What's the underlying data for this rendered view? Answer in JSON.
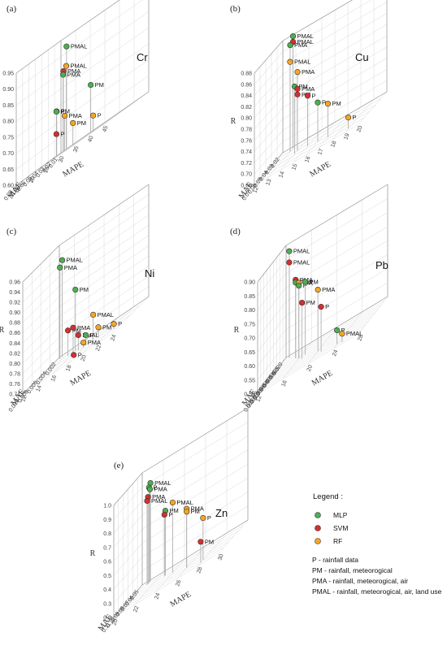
{
  "legend": {
    "title": "Legend :",
    "models": [
      {
        "name": "MLP",
        "color": "#4caf50"
      },
      {
        "name": "SVM",
        "color": "#d62f2f"
      },
      {
        "name": "RF",
        "color": "#f5a623"
      }
    ],
    "abbreviations": [
      "P - rainfall data",
      "PM - rainfall, meteorogical",
      "PMA - rainfall, meteorogical, air",
      "PMAL - rainfall, meteorogical, air, land use"
    ]
  },
  "chart_data": [
    {
      "panel": "(a)",
      "metal": "Cr",
      "type": "scatter",
      "xlabel": "MAE",
      "ylabel": "MAPE",
      "zlabel": "R",
      "xticks": [
        "0.01",
        "0.02",
        "0.03",
        "0.04",
        "0.05",
        "0.06",
        "0.07",
        "0.08"
      ],
      "yticks": [
        "15",
        "20",
        "25",
        "30",
        "35",
        "40",
        "45"
      ],
      "zticks": [
        "0.60",
        "0.65",
        "0.70",
        "0.75",
        "0.80",
        "0.85",
        "0.90",
        "0.95"
      ],
      "xlim": [
        0.01,
        0.08
      ],
      "ylim": [
        15,
        45
      ],
      "zlim": [
        0.6,
        0.95
      ],
      "points": [
        {
          "label": "PMAL",
          "model": "MLP",
          "mae": 0.015,
          "mape": 18,
          "r": 0.92
        },
        {
          "label": "PMAL",
          "model": "RF",
          "mae": 0.02,
          "mape": 19,
          "r": 0.86
        },
        {
          "label": "PMA",
          "model": "SVM",
          "mae": 0.02,
          "mape": 18,
          "r": 0.85
        },
        {
          "label": "PMA",
          "model": "MLP",
          "mae": 0.025,
          "mape": 19,
          "r": 0.84
        },
        {
          "label": "PM",
          "model": "SVM",
          "mae": 0.035,
          "mape": 19,
          "r": 0.74
        },
        {
          "label": "P",
          "model": "MLP",
          "mae": 0.04,
          "mape": 20,
          "r": 0.74
        },
        {
          "label": "P",
          "model": "SVM",
          "mae": 0.04,
          "mape": 20,
          "r": 0.67
        },
        {
          "label": "PMA",
          "model": "RF",
          "mae": 0.05,
          "mape": 25,
          "r": 0.71
        },
        {
          "label": "PM",
          "model": "MLP",
          "mae": 0.055,
          "mape": 35,
          "r": 0.75
        },
        {
          "label": "PM",
          "model": "RF",
          "mae": 0.06,
          "mape": 30,
          "r": 0.67
        },
        {
          "label": "P",
          "model": "RF",
          "mae": 0.065,
          "mape": 38,
          "r": 0.65
        }
      ]
    },
    {
      "panel": "(b)",
      "metal": "Cu",
      "type": "scatter",
      "xlabel": "MAE",
      "ylabel": "MAPE",
      "zlabel": "R",
      "xticks": [
        "0.02",
        "0.03",
        "0.04",
        "0.05",
        "0.06",
        "0.07"
      ],
      "yticks": [
        "12",
        "13",
        "14",
        "15",
        "16",
        "17",
        "18",
        "19",
        "20"
      ],
      "zticks": [
        "0.68",
        "0.70",
        "0.72",
        "0.74",
        "0.76",
        "0.78",
        "0.80",
        "0.82",
        "0.84",
        "0.86",
        "0.88"
      ],
      "xlim": [
        0.02,
        0.07
      ],
      "ylim": [
        12,
        20
      ],
      "zlim": [
        0.68,
        0.88
      ],
      "points": [
        {
          "label": "PMAL",
          "model": "MLP",
          "mae": 0.025,
          "mape": 13,
          "r": 0.88
        },
        {
          "label": "PMAL",
          "model": "SVM",
          "mae": 0.025,
          "mape": 13,
          "r": 0.87
        },
        {
          "label": "PMA",
          "model": "MLP",
          "mae": 0.03,
          "mape": 13,
          "r": 0.87
        },
        {
          "label": "PMAL",
          "model": "RF",
          "mae": 0.03,
          "mape": 13,
          "r": 0.84
        },
        {
          "label": "PMA",
          "model": "RF",
          "mae": 0.04,
          "mape": 14,
          "r": 0.82
        },
        {
          "label": "PM",
          "model": "MLP",
          "mae": 0.045,
          "mape": 14,
          "r": 0.8
        },
        {
          "label": "PMA",
          "model": "SVM",
          "mae": 0.04,
          "mape": 14,
          "r": 0.79
        },
        {
          "label": "PM",
          "model": "SVM",
          "mae": 0.04,
          "mape": 14,
          "r": 0.78
        },
        {
          "label": "P",
          "model": "SVM",
          "mae": 0.045,
          "mape": 15,
          "r": 0.77
        },
        {
          "label": "P",
          "model": "MLP",
          "mae": 0.05,
          "mape": 16,
          "r": 0.75
        },
        {
          "label": "PM",
          "model": "RF",
          "mae": 0.055,
          "mape": 17,
          "r": 0.74
        },
        {
          "label": "P",
          "model": "RF",
          "mae": 0.065,
          "mape": 19,
          "r": 0.7
        }
      ]
    },
    {
      "panel": "(c)",
      "metal": "Ni",
      "type": "scatter",
      "xlabel": "MAE",
      "ylabel": "MAPE",
      "zlabel": "R",
      "xticks": [
        "0.002",
        "0.004",
        "0.006",
        "0.008",
        "0.010"
      ],
      "yticks": [
        "12",
        "14",
        "16",
        "18",
        "20",
        "22",
        "24"
      ],
      "zticks": [
        "0.74",
        "0.76",
        "0.78",
        "0.80",
        "0.82",
        "0.84",
        "0.86",
        "0.88",
        "0.90",
        "0.92",
        "0.94",
        "0.96"
      ],
      "xlim": [
        0.002,
        0.01
      ],
      "ylim": [
        12,
        24
      ],
      "zlim": [
        0.74,
        0.96
      ],
      "points": [
        {
          "label": "PMAL",
          "model": "MLP",
          "mae": 0.003,
          "mape": 13,
          "r": 0.93
        },
        {
          "label": "PMA",
          "model": "MLP",
          "mae": 0.0035,
          "mape": 13,
          "r": 0.92
        },
        {
          "label": "PM",
          "model": "MLP",
          "mae": 0.005,
          "mape": 16,
          "r": 0.86
        },
        {
          "label": "PM",
          "model": "SVM",
          "mae": 0.005,
          "mape": 15,
          "r": 0.79
        },
        {
          "label": "PMA",
          "model": "SVM",
          "mae": 0.0055,
          "mape": 16,
          "r": 0.79
        },
        {
          "label": "PMAL",
          "model": "SVM",
          "mae": 0.006,
          "mape": 17,
          "r": 0.77
        },
        {
          "label": "PMAL",
          "model": "RF",
          "mae": 0.006,
          "mape": 19,
          "r": 0.79
        },
        {
          "label": "P",
          "model": "MLP",
          "mae": 0.006,
          "mape": 18,
          "r": 0.76
        },
        {
          "label": "PM",
          "model": "RF",
          "mae": 0.0065,
          "mape": 20,
          "r": 0.76
        },
        {
          "label": "PMA",
          "model": "RF",
          "mae": 0.0065,
          "mape": 18,
          "r": 0.75
        },
        {
          "label": "P",
          "model": "SVM",
          "mae": 0.007,
          "mape": 17,
          "r": 0.74
        },
        {
          "label": "P",
          "model": "RF",
          "mae": 0.008,
          "mape": 23,
          "r": 0.75
        }
      ]
    },
    {
      "panel": "(d)",
      "metal": "Pb",
      "type": "scatter",
      "xlabel": "MAE",
      "ylabel": "MAPE",
      "zlabel": "R",
      "xticks": [
        "0.020",
        "0.025",
        "0.030",
        "0.035",
        "0.040",
        "0.045",
        "0.050",
        "0.055",
        "0.060",
        "0.065"
      ],
      "yticks": [
        "12",
        "16",
        "20",
        "24",
        "28"
      ],
      "zticks": [
        "0.50",
        "0.55",
        "0.60",
        "0.65",
        "0.70",
        "0.75",
        "0.80",
        "0.85",
        "0.90"
      ],
      "xlim": [
        0.02,
        0.065
      ],
      "ylim": [
        12,
        28
      ],
      "zlim": [
        0.5,
        0.9
      ],
      "points": [
        {
          "label": "PMAL",
          "model": "MLP",
          "mae": 0.025,
          "mape": 13,
          "r": 0.88
        },
        {
          "label": "PMAL",
          "model": "SVM",
          "mae": 0.025,
          "mape": 13,
          "r": 0.84
        },
        {
          "label": "PMA",
          "model": "SVM",
          "mae": 0.035,
          "mape": 15,
          "r": 0.78
        },
        {
          "label": "PMA",
          "model": "MLP",
          "mae": 0.035,
          "mape": 15,
          "r": 0.77
        },
        {
          "label": "PM",
          "model": "RF",
          "mae": 0.04,
          "mape": 16,
          "r": 0.77
        },
        {
          "label": "P",
          "model": "MLP",
          "mae": 0.04,
          "mape": 16,
          "r": 0.76
        },
        {
          "label": "PM",
          "model": "MLP",
          "mae": 0.04,
          "mape": 17,
          "r": 0.76
        },
        {
          "label": "PM",
          "model": "SVM",
          "mae": 0.045,
          "mape": 17,
          "r": 0.7
        },
        {
          "label": "PMA",
          "model": "RF",
          "mae": 0.05,
          "mape": 20,
          "r": 0.72
        },
        {
          "label": "P",
          "model": "SVM",
          "mae": 0.055,
          "mape": 21,
          "r": 0.66
        },
        {
          "label": "P",
          "model": "MLP",
          "mae": 0.06,
          "mape": 24,
          "r": 0.55
        },
        {
          "label": "PMAL",
          "model": "RF",
          "mae": 0.062,
          "mape": 25,
          "r": 0.53
        }
      ]
    },
    {
      "panel": "(e)",
      "metal": "Zn",
      "type": "scatter",
      "xlabel": "MAE",
      "ylabel": "MAPE",
      "zlabel": "R",
      "xticks": [
        "0.05",
        "0.06",
        "0.07",
        "0.08",
        "0.09",
        "0.10",
        "0.11"
      ],
      "yticks": [
        "20",
        "22",
        "24",
        "26",
        "28",
        "30"
      ],
      "zticks": [
        "0.2",
        "0.3",
        "0.4",
        "0.5",
        "0.6",
        "0.7",
        "0.8",
        "0.9",
        "1.0"
      ],
      "xlim": [
        0.05,
        0.11
      ],
      "ylim": [
        20,
        30
      ],
      "zlim": [
        0.2,
        1.0
      ],
      "points": [
        {
          "label": "PMAL",
          "model": "MLP",
          "mae": 0.055,
          "mape": 21,
          "r": 0.9
        },
        {
          "label": "P",
          "model": "MLP",
          "mae": 0.058,
          "mape": 21,
          "r": 0.88
        },
        {
          "label": "PMA",
          "model": "MLP",
          "mae": 0.056,
          "mape": 21,
          "r": 0.86
        },
        {
          "label": "PMA",
          "model": "SVM",
          "mae": 0.06,
          "mape": 21,
          "r": 0.82
        },
        {
          "label": "PMAL",
          "model": "SVM",
          "mae": 0.062,
          "mape": 21,
          "r": 0.8
        },
        {
          "label": "PMAL",
          "model": "RF",
          "mae": 0.075,
          "mape": 24,
          "r": 0.7
        },
        {
          "label": "PM",
          "model": "MLP",
          "mae": 0.068,
          "mape": 23,
          "r": 0.66
        },
        {
          "label": "P",
          "model": "SVM",
          "mae": 0.07,
          "mape": 23,
          "r": 0.64
        },
        {
          "label": "PMA",
          "model": "RF",
          "mae": 0.09,
          "mape": 26,
          "r": 0.62
        },
        {
          "label": "PM",
          "model": "RF",
          "mae": 0.09,
          "mape": 26,
          "r": 0.6
        },
        {
          "label": "P",
          "model": "RF",
          "mae": 0.1,
          "mape": 28,
          "r": 0.5
        },
        {
          "label": "PM",
          "model": "SVM",
          "mae": 0.105,
          "mape": 28,
          "r": 0.35
        }
      ]
    }
  ]
}
